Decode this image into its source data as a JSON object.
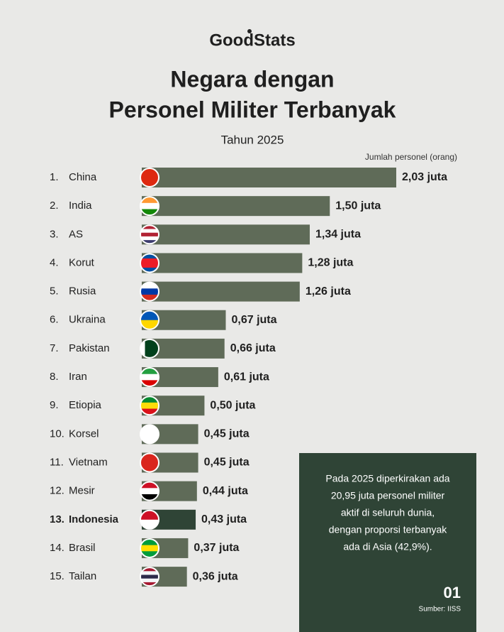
{
  "chart_data": {
    "type": "bar",
    "orientation": "horizontal",
    "brand": "GoodStats",
    "title": [
      "Negara dengan",
      "Personel Militer Terbanyak"
    ],
    "subtitle": "Tahun 2025",
    "value_axis_label": "Jumlah personel (orang)",
    "ranks": [
      "1.",
      "2.",
      "3.",
      "4.",
      "5.",
      "6.",
      "7.",
      "8.",
      "9.",
      "10.",
      "11.",
      "12.",
      "13.",
      "14.",
      "15."
    ],
    "categories": [
      "China",
      "India",
      "AS",
      "Korut",
      "Rusia",
      "Ukraina",
      "Pakistan",
      "Iran",
      "Etiopia",
      "Korsel",
      "Vietnam",
      "Mesir",
      "Indonesia",
      "Brasil",
      "Tailan"
    ],
    "values": [
      2.03,
      1.5,
      1.34,
      1.28,
      1.26,
      0.67,
      0.66,
      0.61,
      0.5,
      0.45,
      0.45,
      0.44,
      0.43,
      0.37,
      0.36
    ],
    "value_labels": [
      "2,03 juta",
      "1,50 juta",
      "1,34 juta",
      "1,28 juta",
      "1,26 juta",
      "0,67 juta",
      "0,66 juta",
      "0,61 juta",
      "0,50 juta",
      "0,45 juta",
      "0,45 juta",
      "0,44 juta",
      "0,43 juta",
      "0,37 juta",
      "0,36 juta"
    ],
    "color": "#5f6b58",
    "highlight": {
      "category": "Indonesia",
      "color": "#2f4436"
    },
    "note": [
      "Pada 2025 diperkirakan ada",
      "20,95 juta personel militer",
      "aktif di seluruh dunia,",
      "dengan proporsi terbanyak",
      "ada di Asia (42,9%)."
    ],
    "page_number": "01",
    "source": "Sumber: IISS"
  }
}
